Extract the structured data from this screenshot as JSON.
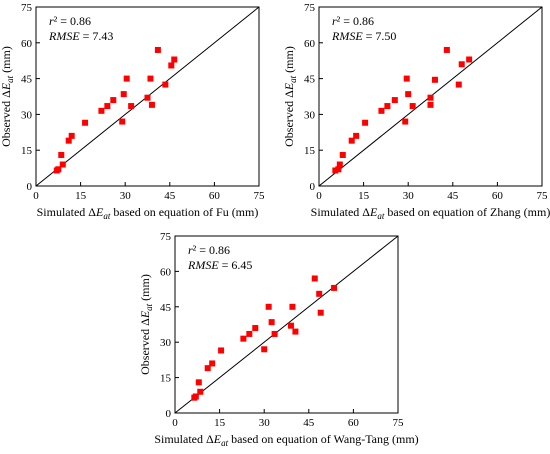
{
  "chart_data": [
    {
      "type": "scatter",
      "xlabel": "Simulated ΔE_at based on equation of Fu (mm)",
      "ylabel": "Observed ΔE_at (mm)",
      "xlim": [
        0,
        75
      ],
      "ylim": [
        0,
        75
      ],
      "xticks": [
        "0",
        "15",
        "30",
        "45",
        "60",
        "75"
      ],
      "yticks": [
        "0",
        "15",
        "30",
        "45",
        "60",
        "75"
      ],
      "r2_label": "r² = 0.86",
      "rmse_label": "RMSE = 7.43",
      "reference_line": "1:1",
      "marker": "square",
      "color": "#ff0000",
      "points": [
        [
          7,
          6.5
        ],
        [
          7.5,
          7
        ],
        [
          8.5,
          13
        ],
        [
          9,
          9
        ],
        [
          11,
          19
        ],
        [
          12,
          21
        ],
        [
          16.5,
          26.5
        ],
        [
          22,
          31.5
        ],
        [
          24,
          33.5
        ],
        [
          26,
          36
        ],
        [
          29,
          27
        ],
        [
          29.5,
          38.5
        ],
        [
          30.5,
          45
        ],
        [
          32,
          33.5
        ],
        [
          37.5,
          37
        ],
        [
          38.5,
          45
        ],
        [
          39,
          34
        ],
        [
          41,
          57
        ],
        [
          43.5,
          42.5
        ],
        [
          45.5,
          50.5
        ],
        [
          46.5,
          53
        ]
      ]
    },
    {
      "type": "scatter",
      "xlabel": "Simulated ΔE_at based on equation of Zhang (mm)",
      "ylabel": "Observed ΔE_at (mm)",
      "xlim": [
        0,
        75
      ],
      "ylim": [
        0,
        75
      ],
      "xticks": [
        "0",
        "15",
        "30",
        "45",
        "60",
        "75"
      ],
      "yticks": [
        "0",
        "15",
        "30",
        "45",
        "60",
        "75"
      ],
      "r2_label": "r² = 0.86",
      "rmse_label": "RMSE = 7.50",
      "reference_line": "1:1",
      "marker": "square",
      "color": "#ff0000",
      "points": [
        [
          5.5,
          6.5
        ],
        [
          6.5,
          7
        ],
        [
          7,
          9
        ],
        [
          8,
          13
        ],
        [
          11,
          19
        ],
        [
          12.5,
          21
        ],
        [
          15.5,
          26.5
        ],
        [
          21,
          31.5
        ],
        [
          23,
          33.5
        ],
        [
          25.5,
          36
        ],
        [
          29,
          27
        ],
        [
          29.5,
          45
        ],
        [
          30,
          38.5
        ],
        [
          31.5,
          33.5
        ],
        [
          37.5,
          37
        ],
        [
          37.5,
          34
        ],
        [
          39,
          44.5
        ],
        [
          43,
          57
        ],
        [
          47,
          42.5
        ],
        [
          48,
          51
        ],
        [
          50.5,
          53
        ]
      ]
    },
    {
      "type": "scatter",
      "xlabel": "Simulated ΔE_at based on equation of Wang-Tang (mm)",
      "ylabel": "Observed ΔE_at (mm)",
      "xlim": [
        0,
        75
      ],
      "ylim": [
        0,
        75
      ],
      "xticks": [
        "0",
        "15",
        "30",
        "45",
        "60",
        "75"
      ],
      "yticks": [
        "0",
        "15",
        "30",
        "45",
        "60",
        "75"
      ],
      "r2_label": "r² = 0.86",
      "rmse_label": "RMSE = 6.45",
      "reference_line": "1:1",
      "marker": "square",
      "color": "#ff0000",
      "points": [
        [
          6.5,
          6.5
        ],
        [
          7,
          7
        ],
        [
          8,
          13
        ],
        [
          8.5,
          9
        ],
        [
          11,
          19
        ],
        [
          12.5,
          21
        ],
        [
          15.5,
          26.5
        ],
        [
          23,
          31.5
        ],
        [
          25,
          33.5
        ],
        [
          27,
          36
        ],
        [
          30,
          27
        ],
        [
          31.5,
          45
        ],
        [
          32.5,
          38.5
        ],
        [
          33.5,
          33.5
        ],
        [
          39,
          37
        ],
        [
          39.5,
          45
        ],
        [
          40.5,
          34.5
        ],
        [
          47,
          57
        ],
        [
          48.5,
          50.5
        ],
        [
          49,
          42.5
        ],
        [
          53.5,
          53
        ]
      ]
    }
  ]
}
